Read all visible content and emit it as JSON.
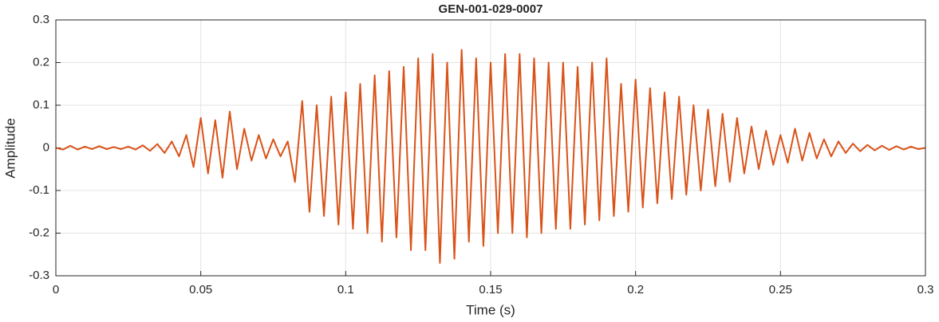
{
  "chart_data": {
    "type": "line",
    "title": "GEN-001-029-0007",
    "x_label": "Time (s)",
    "y_label": "Amplitude",
    "x": [
      0,
      0.0025,
      0.005,
      0.0075,
      0.01,
      0.0125,
      0.015,
      0.0175,
      0.02,
      0.0225,
      0.025,
      0.0275,
      0.03,
      0.0325,
      0.035,
      0.0375,
      0.04,
      0.0425,
      0.045,
      0.0475,
      0.05,
      0.0525,
      0.055,
      0.0575,
      0.06,
      0.0625,
      0.065,
      0.0675,
      0.07,
      0.0725,
      0.075,
      0.0775,
      0.08,
      0.0825,
      0.085,
      0.0875,
      0.09,
      0.0925,
      0.095,
      0.0975,
      0.1,
      0.1025,
      0.105,
      0.1075,
      0.11,
      0.1125,
      0.115,
      0.1175,
      0.12,
      0.1225,
      0.125,
      0.1275,
      0.13,
      0.1325,
      0.135,
      0.1375,
      0.14,
      0.1425,
      0.145,
      0.1475,
      0.15,
      0.1525,
      0.155,
      0.1575,
      0.16,
      0.1625,
      0.165,
      0.1675,
      0.17,
      0.1725,
      0.175,
      0.1775,
      0.18,
      0.1825,
      0.185,
      0.1875,
      0.19,
      0.1925,
      0.195,
      0.1975,
      0.2,
      0.2025,
      0.205,
      0.2075,
      0.21,
      0.2125,
      0.215,
      0.2175,
      0.22,
      0.2225,
      0.225,
      0.2275,
      0.23,
      0.2325,
      0.235,
      0.2375,
      0.24,
      0.2425,
      0.245,
      0.2475,
      0.25,
      0.2525,
      0.255,
      0.2575,
      0.26,
      0.2625,
      0.265,
      0.2675,
      0.27,
      0.2725,
      0.275,
      0.2775,
      0.28,
      0.2825,
      0.285,
      0.2875,
      0.29,
      0.2925,
      0.295,
      0.2975,
      0.3
    ],
    "series": [
      {
        "color": "#d95319",
        "values": [
          0,
          -0.004,
          0.005,
          -0.004,
          0.003,
          -0.003,
          0.004,
          -0.003,
          0.002,
          -0.003,
          0.003,
          -0.004,
          0.006,
          -0.007,
          0.009,
          -0.012,
          0.015,
          -0.02,
          0.03,
          -0.045,
          0.07,
          -0.06,
          0.065,
          -0.07,
          0.085,
          -0.05,
          0.045,
          -0.03,
          0.03,
          -0.025,
          0.02,
          -0.02,
          0.015,
          -0.08,
          0.11,
          -0.15,
          0.1,
          -0.16,
          0.12,
          -0.18,
          0.13,
          -0.19,
          0.15,
          -0.2,
          0.17,
          -0.22,
          0.18,
          -0.21,
          0.19,
          -0.24,
          0.21,
          -0.24,
          0.22,
          -0.27,
          0.2,
          -0.26,
          0.23,
          -0.22,
          0.21,
          -0.23,
          0.2,
          -0.2,
          0.22,
          -0.2,
          0.22,
          -0.21,
          0.21,
          -0.2,
          0.2,
          -0.19,
          0.2,
          -0.19,
          0.19,
          -0.18,
          0.2,
          -0.17,
          0.21,
          -0.16,
          0.15,
          -0.15,
          0.16,
          -0.14,
          0.14,
          -0.13,
          0.13,
          -0.12,
          0.12,
          -0.11,
          0.1,
          -0.1,
          0.09,
          -0.09,
          0.08,
          -0.08,
          0.07,
          -0.06,
          0.05,
          -0.05,
          0.04,
          -0.04,
          0.03,
          -0.035,
          0.045,
          -0.03,
          0.035,
          -0.025,
          0.02,
          -0.02,
          0.015,
          -0.012,
          0.01,
          -0.008,
          0.007,
          -0.006,
          0.005,
          -0.005,
          0.004,
          -0.004,
          0.003,
          -0.003,
          0
        ]
      }
    ],
    "xlim": [
      0,
      0.3
    ],
    "xticks": [
      0,
      0.05,
      0.1,
      0.15,
      0.2,
      0.25,
      0.3
    ],
    "ylim": [
      -0.3,
      0.3
    ],
    "yticks": [
      -0.3,
      -0.2,
      -0.1,
      0,
      0.1,
      0.2,
      0.3
    ],
    "grid": true
  }
}
